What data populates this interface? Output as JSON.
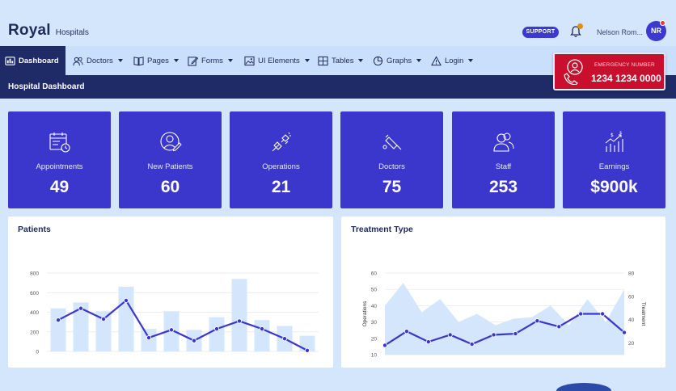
{
  "brand": {
    "name": "Royal",
    "sub": "Hospitals"
  },
  "topbar": {
    "support_label": "SUPPORT",
    "username": "Nelson Rom...",
    "avatar_initials": "NR"
  },
  "nav": {
    "items": [
      {
        "label": "Dashboard",
        "icon": "dashboard-icon",
        "active": true
      },
      {
        "label": "Doctors",
        "icon": "users-icon"
      },
      {
        "label": "Pages",
        "icon": "book-icon"
      },
      {
        "label": "Forms",
        "icon": "edit-icon"
      },
      {
        "label": "UI Elements",
        "icon": "image-icon"
      },
      {
        "label": "Tables",
        "icon": "grid-icon"
      },
      {
        "label": "Graphs",
        "icon": "pie-icon"
      },
      {
        "label": "Login",
        "icon": "warning-icon"
      }
    ]
  },
  "subheader": {
    "title": "Hospital Dashboard"
  },
  "emergency": {
    "label": "EMERGENCY NUMBER",
    "number": "1234 1234 0000"
  },
  "stats": [
    {
      "label": "Appointments",
      "value": "49",
      "icon": "calendar-icon"
    },
    {
      "label": "New Patients",
      "value": "60",
      "icon": "patient-icon"
    },
    {
      "label": "Operations",
      "value": "21",
      "icon": "plug-icon"
    },
    {
      "label": "Doctors",
      "value": "75",
      "icon": "syringe-icon"
    },
    {
      "label": "Staff",
      "value": "253",
      "icon": "staff-icon"
    },
    {
      "label": "Earnings",
      "value": "$900k",
      "icon": "earnings-icon"
    }
  ],
  "colors": {
    "accent": "#3c37cc",
    "navy": "#1f2b66",
    "emergency": "#c8102e",
    "bar_fill": "#d3e6fb",
    "line": "#3c37cc"
  },
  "chart_data": [
    {
      "type": "bar",
      "title": "Patients",
      "ylim": [
        0,
        800
      ],
      "yticks": [
        0,
        200,
        400,
        600,
        800
      ],
      "series": [
        {
          "values": [
            440,
            500,
            410,
            660,
            230,
            410,
            220,
            350,
            740,
            320,
            260,
            160
          ]
        },
        {
          "values": [
            320,
            440,
            330,
            520,
            140,
            220,
            110,
            230,
            310,
            230,
            130,
            10
          ]
        }
      ]
    },
    {
      "type": "area",
      "title": "Treatment Type",
      "ylabel": "Operations",
      "y2label": "Treatment",
      "ylim": [
        10,
        60
      ],
      "yticks": [
        10,
        20,
        30,
        40,
        50,
        60
      ],
      "y2lim": [
        10,
        80
      ],
      "y2ticks": [
        20,
        40,
        60,
        80
      ],
      "series": [
        {
          "values": [
            40,
            54,
            36,
            44,
            30,
            35,
            28,
            32,
            33,
            40,
            28,
            44,
            30,
            50
          ]
        },
        {
          "values": [
            18,
            30,
            21,
            27,
            19,
            27,
            28,
            39,
            34,
            45,
            45,
            29
          ]
        }
      ]
    }
  ]
}
